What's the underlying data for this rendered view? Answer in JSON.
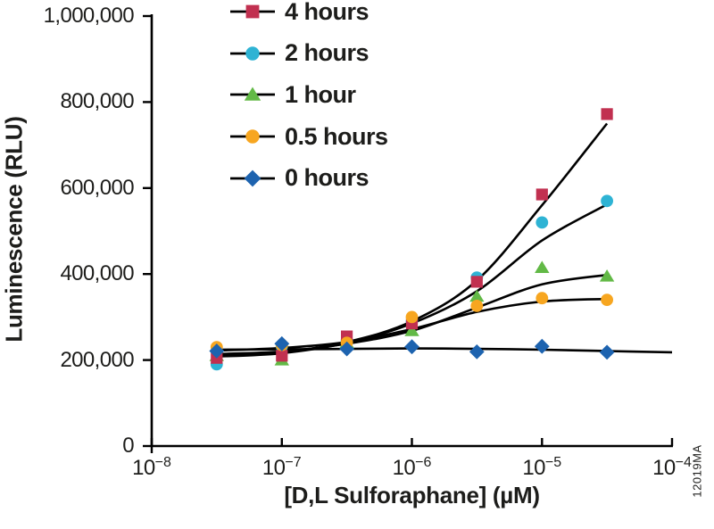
{
  "figure": {
    "watermark": "12019MA",
    "background": "#ffffff",
    "text_color": "#1d1d1b",
    "axis_color": "#000000"
  },
  "chart_data": {
    "type": "scatter",
    "title": "",
    "xlabel": "[D,L Sulforaphane] (µM)",
    "ylabel": "Luminescence (RLU)",
    "x_scale": "log10",
    "grid": false,
    "legend_position": "top-left-inside",
    "x_range": [
      1e-08,
      0.0001
    ],
    "y_range": [
      0,
      1000000
    ],
    "x_ticks": [
      {
        "base": "10",
        "exp": "−8"
      },
      {
        "base": "10",
        "exp": "−7"
      },
      {
        "base": "10",
        "exp": "−6"
      },
      {
        "base": "10",
        "exp": "−5"
      },
      {
        "base": "10",
        "exp": "−4"
      }
    ],
    "x_tick_values": [
      1e-08,
      1e-07,
      1e-06,
      1e-05,
      0.0001
    ],
    "y_ticks": [
      {
        "value": 0,
        "label": "0"
      },
      {
        "value": 200000,
        "label": "200,000"
      },
      {
        "value": 400000,
        "label": "400,000"
      },
      {
        "value": 600000,
        "label": "600,000"
      },
      {
        "value": 800000,
        "label": "800,000"
      },
      {
        "value": 1000000,
        "label": "1,000,000"
      }
    ],
    "x": [
      3.16e-08,
      1e-07,
      3.16e-07,
      1e-06,
      3.16e-06,
      1e-05,
      3.16e-05
    ],
    "line_color": "#000000",
    "z_draw_order": [
      1,
      2,
      0,
      3,
      4
    ],
    "series": [
      {
        "name": "4 hours",
        "marker": "square",
        "color": "#c13050",
        "values": [
          205000,
          210000,
          255000,
          285000,
          382000,
          585000,
          772000
        ],
        "fit_curve": {
          "x": [
            3.16e-08,
            1e-07,
            3.16e-07,
            1e-06,
            3.16e-06,
            1e-05,
            3.16e-05
          ],
          "y": [
            212000,
            218000,
            242000,
            290000,
            385000,
            560000,
            750000
          ]
        }
      },
      {
        "name": "2 hours",
        "marker": "circle",
        "color": "#2eb3d4",
        "values": [
          190000,
          232000,
          245000,
          290000,
          392000,
          520000,
          570000
        ],
        "fit_curve": {
          "x": [
            3.16e-08,
            1e-07,
            3.16e-07,
            1e-06,
            3.16e-06,
            1e-05,
            3.16e-05
          ],
          "y": [
            208000,
            216000,
            240000,
            285000,
            360000,
            478000,
            562000
          ]
        }
      },
      {
        "name": "1 hour",
        "marker": "triangle",
        "color": "#62b946",
        "values": [
          210000,
          200000,
          240000,
          268000,
          348000,
          415000,
          395000
        ],
        "fit_curve": {
          "x": [
            3.16e-08,
            1e-07,
            3.16e-07,
            1e-06,
            3.16e-06,
            1e-05,
            3.16e-05
          ],
          "y": [
            214000,
            220000,
            238000,
            268000,
            322000,
            376000,
            398000
          ]
        }
      },
      {
        "name": "0.5 hours",
        "marker": "circle",
        "color": "#f7a620",
        "values": [
          230000,
          235000,
          240000,
          300000,
          326000,
          344000,
          340000
        ],
        "fit_curve": {
          "x": [
            3.16e-08,
            1e-07,
            3.16e-07,
            1e-06,
            3.16e-06,
            1e-05,
            3.16e-05
          ],
          "y": [
            222000,
            228000,
            242000,
            272000,
            312000,
            336000,
            342000
          ]
        }
      },
      {
        "name": "0 hours",
        "marker": "diamond",
        "color": "#1d63af",
        "values": [
          221000,
          238000,
          226000,
          231000,
          219000,
          232000,
          218000
        ],
        "fit_curve": {
          "x": [
            3.16e-08,
            1e-07,
            3.16e-07,
            1e-06,
            3.16e-06,
            1e-05,
            3.16e-05,
            0.0001
          ],
          "y": [
            224000,
            225000,
            226000,
            227000,
            226000,
            224000,
            221000,
            218000
          ]
        }
      }
    ]
  }
}
